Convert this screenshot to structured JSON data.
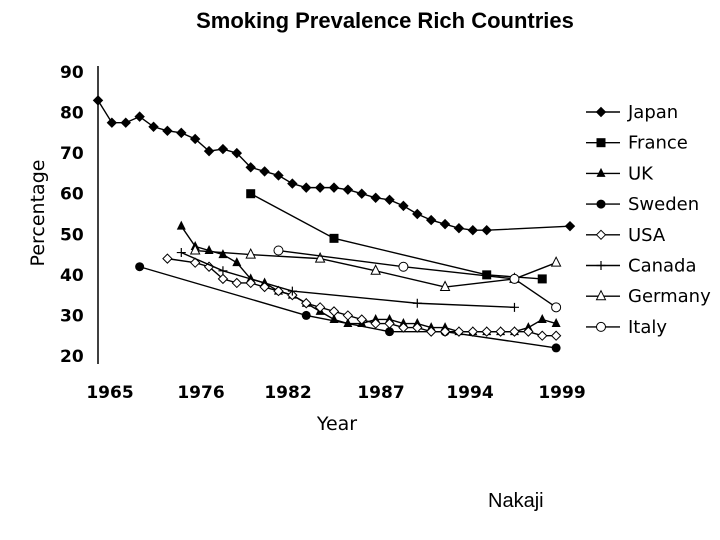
{
  "chart_data": {
    "type": "line",
    "title": "Smoking Prevalence Rich Countries",
    "xlabel": "Year",
    "ylabel": "Percentage",
    "xticks": [
      1965,
      1976,
      1982,
      1987,
      1994,
      1999
    ],
    "yticks": [
      20,
      30,
      40,
      50,
      60,
      70,
      80,
      90
    ],
    "xlim": [
      1965,
      1999
    ],
    "ylim": [
      20,
      90
    ],
    "legend": "right",
    "series": [
      {
        "name": "Japan",
        "marker": "diamond-filled",
        "x": [
          1965,
          1966,
          1967,
          1968,
          1969,
          1970,
          1971,
          1972,
          1973,
          1974,
          1975,
          1976,
          1977,
          1978,
          1979,
          1980,
          1981,
          1982,
          1983,
          1984,
          1985,
          1986,
          1987,
          1988,
          1989,
          1990,
          1991,
          1992,
          1993,
          1999
        ],
        "y": [
          83,
          77.5,
          77.5,
          79,
          76.5,
          75.5,
          75,
          73.5,
          70.5,
          71,
          70,
          66.5,
          65.5,
          64.5,
          62.5,
          61.5,
          61.5,
          61.5,
          61,
          60,
          59,
          58.5,
          57,
          55,
          53.5,
          52.5,
          51.5,
          51,
          51,
          52
        ]
      },
      {
        "name": "France",
        "marker": "square-filled",
        "x": [
          1976,
          1982,
          1993,
          1997
        ],
        "y": [
          60,
          49,
          40,
          39
        ]
      },
      {
        "name": "UK",
        "marker": "triangle-filled",
        "x": [
          1971,
          1972,
          1973,
          1974,
          1975,
          1976,
          1977,
          1978,
          1979,
          1980,
          1981,
          1982,
          1983,
          1984,
          1985,
          1986,
          1987,
          1988,
          1989,
          1990,
          1991,
          1992,
          1993,
          1994,
          1995,
          1996,
          1997,
          1998
        ],
        "y": [
          52,
          47,
          46,
          45,
          43,
          39,
          38,
          36,
          35,
          33,
          31,
          29,
          28,
          28,
          29,
          29,
          28,
          28,
          27,
          27,
          26,
          26,
          26,
          26,
          26,
          27,
          29,
          28
        ]
      },
      {
        "name": "Sweden",
        "marker": "circle-filled",
        "x": [
          1968,
          1980,
          1986,
          1990,
          1998
        ],
        "y": [
          42,
          30,
          26,
          26,
          22
        ]
      },
      {
        "name": "USA",
        "marker": "diamond-open",
        "x": [
          1970,
          1972,
          1973,
          1974,
          1975,
          1976,
          1977,
          1978,
          1979,
          1980,
          1981,
          1982,
          1983,
          1984,
          1985,
          1986,
          1987,
          1988,
          1989,
          1990,
          1991,
          1992,
          1993,
          1994,
          1995,
          1996,
          1997,
          1998
        ],
        "y": [
          44,
          43,
          42,
          39,
          38,
          38,
          37,
          36,
          35,
          33,
          32,
          31,
          30,
          29,
          28,
          28,
          27,
          27,
          26,
          26,
          26,
          26,
          26,
          26,
          26,
          26,
          25,
          25
        ]
      },
      {
        "name": "Canada",
        "marker": "plus",
        "x": [
          1971,
          1974,
          1979,
          1988,
          1995
        ],
        "y": [
          45.5,
          41,
          36,
          33,
          32
        ]
      },
      {
        "name": "Germany",
        "marker": "triangle-open",
        "x": [
          1972,
          1976,
          1981,
          1985,
          1990,
          1995,
          1998
        ],
        "y": [
          46,
          45,
          44,
          41,
          37,
          39,
          43
        ]
      },
      {
        "name": "Italy",
        "marker": "circle-open",
        "x": [
          1978,
          1987,
          1995,
          1998
        ],
        "y": [
          46,
          42,
          39,
          32
        ]
      }
    ]
  },
  "footer": {
    "author": "Nakaji"
  }
}
